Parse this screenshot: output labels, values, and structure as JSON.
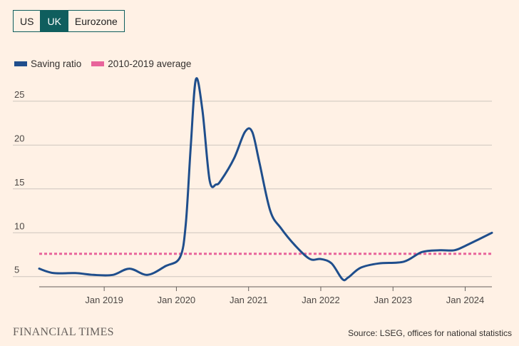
{
  "tabs": [
    {
      "label": "US",
      "active": false
    },
    {
      "label": "UK",
      "active": true
    },
    {
      "label": "Eurozone",
      "active": false
    }
  ],
  "legend": {
    "series_label": "Saving ratio",
    "average_label": "2010-2019 average"
  },
  "footer": {
    "brand": "FINANCIAL TIMES",
    "source": "Source: LSEG, offices for national statistics"
  },
  "colors": {
    "series": "#1F4E8C",
    "average": "#E8649B",
    "grid": "#CEC6BE",
    "tab_active": "#0F5E5E"
  },
  "chart_data": {
    "type": "line",
    "title": "",
    "xlabel": "",
    "ylabel": "",
    "xlim": [
      2018.1,
      2024.37
    ],
    "ylim": [
      4,
      28
    ],
    "y_ticks": [
      5,
      10,
      15,
      20,
      25
    ],
    "x_ticks": [
      {
        "value": 2019,
        "label": "Jan 2019"
      },
      {
        "value": 2020,
        "label": "Jan 2020"
      },
      {
        "value": 2021,
        "label": "Jan 2021"
      },
      {
        "value": 2022,
        "label": "Jan 2022"
      },
      {
        "value": 2023,
        "label": "Jan 2023"
      },
      {
        "value": 2024,
        "label": "Jan 2024"
      }
    ],
    "series": [
      {
        "name": "Saving ratio",
        "x": [
          2018.1,
          2018.3,
          2018.6,
          2018.85,
          2019.12,
          2019.35,
          2019.6,
          2019.85,
          2020.05,
          2020.13,
          2020.2,
          2020.27,
          2020.36,
          2020.46,
          2020.55,
          2020.62,
          2020.8,
          2020.95,
          2021.05,
          2021.15,
          2021.3,
          2021.45,
          2021.65,
          2021.85,
          2022.0,
          2022.15,
          2022.3,
          2022.38,
          2022.55,
          2022.8,
          2023.15,
          2023.4,
          2023.65,
          2023.85,
          2024.0,
          2024.2,
          2024.37
        ],
        "y": [
          5.9,
          5.4,
          5.4,
          5.2,
          5.2,
          5.9,
          5.2,
          6.2,
          7.2,
          11.0,
          20.0,
          27.5,
          24.0,
          16.0,
          15.5,
          16.0,
          18.5,
          21.5,
          21.5,
          18.0,
          12.5,
          10.5,
          8.5,
          7.0,
          7.0,
          6.5,
          4.7,
          4.9,
          6.0,
          6.5,
          6.7,
          7.8,
          8.0,
          8.0,
          8.5,
          9.3,
          10.0
        ]
      }
    ],
    "reference_line": {
      "name": "2010-2019 average",
      "value": 7.6
    }
  }
}
